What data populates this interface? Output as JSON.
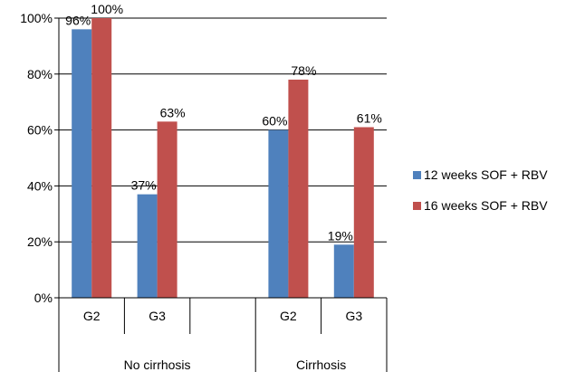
{
  "chart_data": {
    "type": "bar",
    "groups": [
      {
        "label": "No cirrhosis",
        "categories": [
          "G2",
          "G3",
          ""
        ]
      },
      {
        "label": "Cirrhosis",
        "categories": [
          "G2",
          "G3"
        ]
      }
    ],
    "categories": [
      "G2",
      "G3",
      "",
      "G2",
      "G3"
    ],
    "series": [
      {
        "name": "12 weeks SOF + RBV",
        "color": "#4F81BD",
        "values": [
          96,
          37,
          null,
          60,
          19
        ],
        "labels": [
          "96%",
          "37%",
          "",
          "60%",
          "19%"
        ]
      },
      {
        "name": "16 weeks SOF + RBV",
        "color": "#C0504D",
        "values": [
          100,
          63,
          null,
          78,
          61
        ],
        "labels": [
          "100%",
          "63%",
          "",
          "78%",
          "61%"
        ]
      }
    ],
    "y_ticks": [
      "0%",
      "20%",
      "40%",
      "60%",
      "80%",
      "100%"
    ],
    "ylim": [
      0,
      100
    ],
    "grid": true,
    "legend_position": "right"
  }
}
